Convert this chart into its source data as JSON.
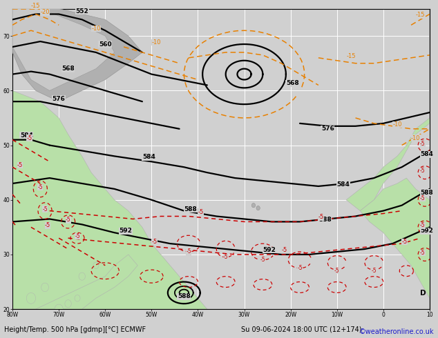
{
  "title_left": "Height/Temp. 500 hPa [gdmp][°C] ECMWF",
  "title_right": "Su 09-06-2024 18:00 UTC (12+174)",
  "watermark": "©weatheronline.co.uk",
  "ocean_color": "#d0d0d0",
  "land_green": "#b8e0a8",
  "land_gray": "#b0b0b0",
  "grid_color": "#ffffff",
  "grid_lw": 0.7,
  "geo_color": "#000000",
  "geo_lw": 1.6,
  "temp_orange_color": "#e88000",
  "temp_red_color": "#cc0000",
  "temp_lw": 1.1,
  "label_fs": 6.5,
  "title_fs": 7.0,
  "watermark_color": "#1a1acc",
  "figsize": [
    6.34,
    4.9
  ],
  "dpi": 100,
  "xlim": [
    -80,
    10
  ],
  "ylim": [
    20,
    75
  ],
  "xtick_vals": [
    -80,
    -70,
    -60,
    -50,
    -40,
    -30,
    -20,
    -10,
    0,
    10
  ],
  "ytick_vals": [
    20,
    30,
    40,
    50,
    60,
    70
  ],
  "xtick_labels": [
    "80W",
    "70W",
    "60W",
    "50W",
    "40W",
    "30W",
    "20W",
    "10W",
    "0",
    "10"
  ],
  "ytick_labels": [
    "20",
    "30",
    "40",
    "50",
    "60",
    "70"
  ]
}
